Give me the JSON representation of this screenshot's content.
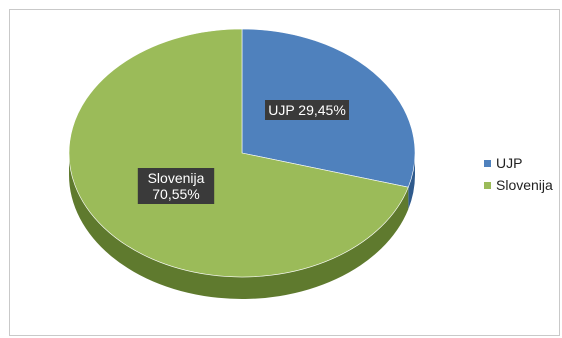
{
  "chart_data": {
    "type": "pie",
    "style": "3d",
    "categories": [
      "UJP",
      "Slovenija"
    ],
    "values": [
      29.45,
      70.55
    ],
    "data_labels": [
      "UJP 29,45%",
      "Slovenija\n70,55%"
    ],
    "colors": [
      "#4f81bd",
      "#9bbb59"
    ],
    "side_colors": [
      "#2f5a8c",
      "#5f7a2e"
    ],
    "label_style": {
      "background": "#3a3a3a",
      "text": "#ffffff"
    },
    "legend": "right"
  }
}
